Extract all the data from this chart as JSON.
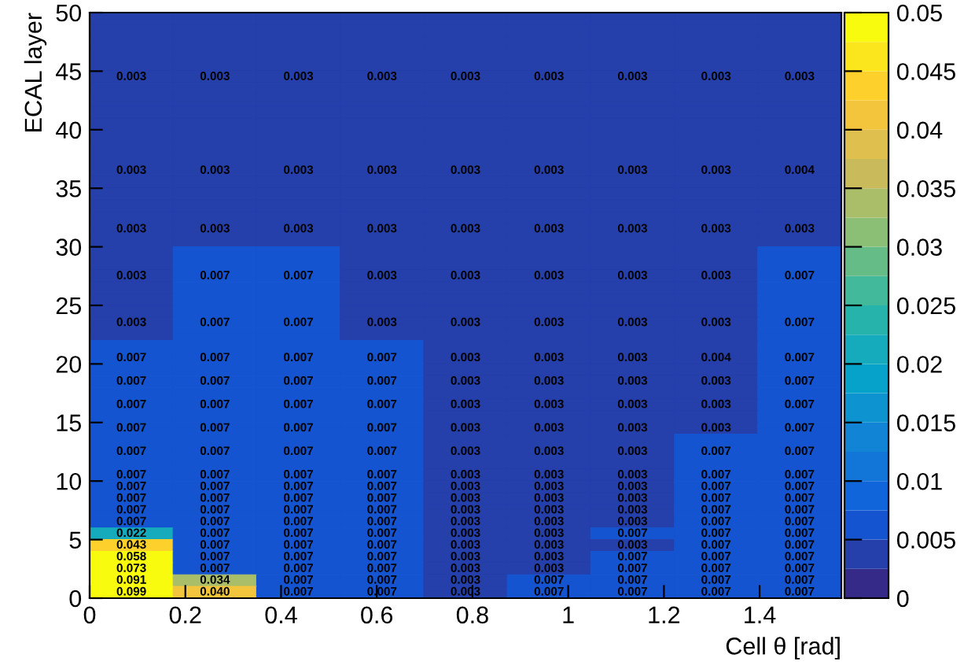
{
  "chart_data": {
    "type": "heatmap",
    "xlabel": "Cell θ [rad]",
    "ylabel": "ECAL layer",
    "x": [
      0.0873,
      0.2618,
      0.4363,
      0.6109,
      0.7854,
      0.9599,
      1.1345,
      1.309,
      1.4835
    ],
    "y": [
      49.5,
      48.5,
      47.5,
      46.5,
      45.5,
      44.5,
      43.5,
      42.5,
      41.5,
      40.5,
      39.5,
      38.5,
      37.5,
      36.5,
      35.5,
      34.5,
      33.5,
      32.5,
      31.5,
      30.5,
      29.5,
      28.5,
      27.5,
      26.5,
      25.5,
      24.5,
      23.5,
      22.5,
      21.5,
      20.5,
      19.5,
      18.5,
      17.5,
      16.5,
      15.5,
      14.5,
      13.5,
      12.5,
      11.5,
      10.5,
      9.5,
      8.5,
      7.5,
      6.5,
      5.5,
      4.5,
      3.5,
      2.5,
      1.5,
      0.5
    ],
    "cells": [
      [
        0.003,
        0.003,
        0.003,
        0.003,
        0.003,
        0.003,
        0.003,
        0.003,
        0.003
      ],
      [
        0.003,
        0.003,
        0.003,
        0.003,
        0.003,
        0.003,
        0.003,
        0.003,
        0.003
      ],
      [
        0.003,
        0.003,
        0.003,
        0.003,
        0.003,
        0.003,
        0.003,
        0.003,
        0.003
      ],
      [
        0.003,
        0.003,
        0.003,
        0.003,
        0.003,
        0.003,
        0.003,
        0.003,
        0.003
      ],
      [
        0.003,
        0.003,
        0.003,
        0.003,
        0.003,
        0.003,
        0.003,
        0.003,
        0.003
      ],
      [
        0.003,
        0.003,
        0.003,
        0.003,
        0.003,
        0.003,
        0.003,
        0.003,
        0.003
      ],
      [
        0.003,
        0.003,
        0.003,
        0.003,
        0.003,
        0.003,
        0.003,
        0.003,
        0.003
      ],
      [
        0.003,
        0.003,
        0.003,
        0.003,
        0.003,
        0.003,
        0.003,
        0.003,
        0.003
      ],
      [
        0.003,
        0.003,
        0.003,
        0.003,
        0.003,
        0.003,
        0.003,
        0.003,
        0.003
      ],
      [
        0.003,
        0.003,
        0.003,
        0.003,
        0.003,
        0.003,
        0.003,
        0.003,
        0.003
      ],
      [
        0.003,
        0.003,
        0.003,
        0.003,
        0.003,
        0.003,
        0.003,
        0.003,
        0.004
      ],
      [
        0.003,
        0.003,
        0.003,
        0.003,
        0.003,
        0.003,
        0.003,
        0.003,
        0.004
      ],
      [
        0.003,
        0.003,
        0.003,
        0.003,
        0.003,
        0.003,
        0.003,
        0.003,
        0.004
      ],
      [
        0.003,
        0.003,
        0.003,
        0.003,
        0.003,
        0.003,
        0.003,
        0.003,
        0.004
      ],
      [
        0.003,
        0.003,
        0.003,
        0.003,
        0.003,
        0.003,
        0.003,
        0.003,
        0.004
      ],
      [
        0.003,
        0.003,
        0.003,
        0.003,
        0.003,
        0.003,
        0.003,
        0.003,
        0.004
      ],
      [
        0.003,
        0.003,
        0.003,
        0.003,
        0.003,
        0.003,
        0.003,
        0.003,
        0.003
      ],
      [
        0.003,
        0.003,
        0.003,
        0.003,
        0.003,
        0.003,
        0.003,
        0.003,
        0.003
      ],
      [
        0.003,
        0.003,
        0.003,
        0.003,
        0.003,
        0.003,
        0.003,
        0.003,
        0.003
      ],
      [
        0.003,
        0.003,
        0.003,
        0.003,
        0.003,
        0.003,
        0.003,
        0.003,
        0.003
      ],
      [
        0.003,
        0.007,
        0.007,
        0.003,
        0.003,
        0.003,
        0.003,
        0.003,
        0.007
      ],
      [
        0.003,
        0.007,
        0.007,
        0.003,
        0.003,
        0.003,
        0.003,
        0.003,
        0.007
      ],
      [
        0.003,
        0.007,
        0.007,
        0.003,
        0.003,
        0.003,
        0.003,
        0.003,
        0.007
      ],
      [
        0.003,
        0.007,
        0.007,
        0.003,
        0.003,
        0.003,
        0.003,
        0.003,
        0.007
      ],
      [
        0.003,
        0.007,
        0.007,
        0.003,
        0.003,
        0.003,
        0.003,
        0.003,
        0.007
      ],
      [
        0.003,
        0.007,
        0.007,
        0.003,
        0.003,
        0.003,
        0.003,
        0.003,
        0.007
      ],
      [
        0.003,
        0.007,
        0.007,
        0.003,
        0.003,
        0.003,
        0.003,
        0.003,
        0.007
      ],
      [
        0.003,
        0.007,
        0.007,
        0.003,
        0.003,
        0.003,
        0.003,
        0.003,
        0.007
      ],
      [
        0.007,
        0.007,
        0.007,
        0.007,
        0.003,
        0.003,
        0.003,
        0.004,
        0.007
      ],
      [
        0.007,
        0.007,
        0.007,
        0.007,
        0.003,
        0.003,
        0.003,
        0.004,
        0.007
      ],
      [
        0.007,
        0.007,
        0.007,
        0.007,
        0.003,
        0.003,
        0.003,
        0.003,
        0.007
      ],
      [
        0.007,
        0.007,
        0.007,
        0.007,
        0.003,
        0.003,
        0.003,
        0.003,
        0.007
      ],
      [
        0.007,
        0.007,
        0.007,
        0.007,
        0.003,
        0.003,
        0.003,
        0.003,
        0.007
      ],
      [
        0.007,
        0.007,
        0.007,
        0.007,
        0.003,
        0.003,
        0.003,
        0.003,
        0.007
      ],
      [
        0.007,
        0.007,
        0.007,
        0.007,
        0.003,
        0.003,
        0.003,
        0.003,
        0.007
      ],
      [
        0.007,
        0.007,
        0.007,
        0.007,
        0.003,
        0.003,
        0.003,
        0.003,
        0.007
      ],
      [
        0.007,
        0.007,
        0.007,
        0.007,
        0.003,
        0.003,
        0.003,
        0.007,
        0.007
      ],
      [
        0.007,
        0.007,
        0.007,
        0.007,
        0.003,
        0.003,
        0.003,
        0.007,
        0.007
      ],
      [
        0.007,
        0.007,
        0.007,
        0.007,
        0.003,
        0.003,
        0.003,
        0.007,
        0.007
      ],
      [
        0.007,
        0.007,
        0.007,
        0.007,
        0.003,
        0.003,
        0.003,
        0.007,
        0.007
      ],
      [
        0.007,
        0.007,
        0.007,
        0.007,
        0.003,
        0.003,
        0.003,
        0.007,
        0.007
      ],
      [
        0.007,
        0.007,
        0.007,
        0.007,
        0.003,
        0.003,
        0.003,
        0.007,
        0.007
      ],
      [
        0.007,
        0.007,
        0.007,
        0.007,
        0.003,
        0.003,
        0.003,
        0.007,
        0.007
      ],
      [
        0.007,
        0.007,
        0.007,
        0.007,
        0.003,
        0.003,
        0.003,
        0.007,
        0.007
      ],
      [
        0.022,
        0.007,
        0.007,
        0.007,
        0.003,
        0.003,
        0.007,
        0.007,
        0.007
      ],
      [
        0.043,
        0.007,
        0.007,
        0.007,
        0.003,
        0.003,
        0.003,
        0.007,
        0.007
      ],
      [
        0.058,
        0.007,
        0.007,
        0.007,
        0.003,
        0.003,
        0.007,
        0.007,
        0.007
      ],
      [
        0.073,
        0.007,
        0.007,
        0.007,
        0.003,
        0.003,
        0.007,
        0.007,
        0.007
      ],
      [
        0.091,
        0.034,
        0.007,
        0.007,
        0.003,
        0.007,
        0.007,
        0.007,
        0.007
      ],
      [
        0.099,
        0.04,
        0.007,
        0.007,
        0.003,
        0.007,
        0.007,
        0.007,
        0.007
      ]
    ],
    "cell_labels": [
      [
        null,
        null,
        null,
        null,
        null,
        null,
        null,
        null,
        null
      ],
      [
        null,
        null,
        null,
        null,
        null,
        null,
        null,
        null,
        null
      ],
      [
        null,
        null,
        null,
        null,
        null,
        null,
        null,
        null,
        null
      ],
      [
        null,
        null,
        null,
        null,
        null,
        null,
        null,
        null,
        null
      ],
      [
        null,
        null,
        null,
        null,
        null,
        null,
        null,
        null,
        null
      ],
      [
        "0.003",
        "0.003",
        "0.003",
        "0.003",
        "0.003",
        "0.003",
        "0.003",
        "0.003",
        "0.003"
      ],
      [
        null,
        null,
        null,
        null,
        null,
        null,
        null,
        null,
        null
      ],
      [
        null,
        null,
        null,
        null,
        null,
        null,
        null,
        null,
        null
      ],
      [
        null,
        null,
        null,
        null,
        null,
        null,
        null,
        null,
        null
      ],
      [
        null,
        null,
        null,
        null,
        null,
        null,
        null,
        null,
        null
      ],
      [
        null,
        null,
        null,
        null,
        null,
        null,
        null,
        null,
        null
      ],
      [
        null,
        null,
        null,
        null,
        null,
        null,
        null,
        null,
        null
      ],
      [
        null,
        null,
        null,
        null,
        null,
        null,
        null,
        null,
        null
      ],
      [
        "0.003",
        "0.003",
        "0.003",
        "0.003",
        "0.003",
        "0.003",
        "0.003",
        "0.003",
        "0.004"
      ],
      [
        null,
        null,
        null,
        null,
        null,
        null,
        null,
        null,
        null
      ],
      [
        null,
        null,
        null,
        null,
        null,
        null,
        null,
        null,
        null
      ],
      [
        null,
        null,
        null,
        null,
        null,
        null,
        null,
        null,
        null
      ],
      [
        null,
        null,
        null,
        null,
        null,
        null,
        null,
        null,
        null
      ],
      [
        "0.003",
        "0.003",
        "0.003",
        "0.003",
        "0.003",
        "0.003",
        "0.003",
        "0.003",
        "0.003"
      ],
      [
        null,
        null,
        null,
        null,
        null,
        null,
        null,
        null,
        null
      ],
      [
        null,
        null,
        null,
        null,
        null,
        null,
        null,
        null,
        null
      ],
      [
        null,
        null,
        null,
        null,
        null,
        null,
        null,
        null,
        null
      ],
      [
        "0.003",
        "0.007",
        "0.007",
        "0.003",
        "0.003",
        "0.003",
        "0.003",
        "0.003",
        "0.007"
      ],
      [
        null,
        null,
        null,
        null,
        null,
        null,
        null,
        null,
        null
      ],
      [
        null,
        null,
        null,
        null,
        null,
        null,
        null,
        null,
        null
      ],
      [
        null,
        null,
        null,
        null,
        null,
        null,
        null,
        null,
        null
      ],
      [
        "0.003",
        "0.007",
        "0.007",
        "0.003",
        "0.003",
        "0.003",
        "0.003",
        "0.003",
        "0.007"
      ],
      [
        null,
        null,
        null,
        null,
        null,
        null,
        null,
        null,
        null
      ],
      [
        null,
        null,
        null,
        null,
        null,
        null,
        null,
        null,
        null
      ],
      [
        "0.007",
        "0.007",
        "0.007",
        "0.007",
        "0.003",
        "0.003",
        "0.003",
        "0.004",
        "0.007"
      ],
      [
        null,
        null,
        null,
        null,
        null,
        null,
        null,
        null,
        null
      ],
      [
        "0.007",
        "0.007",
        "0.007",
        "0.007",
        "0.003",
        "0.003",
        "0.003",
        "0.003",
        "0.007"
      ],
      [
        null,
        null,
        null,
        null,
        null,
        null,
        null,
        null,
        null
      ],
      [
        "0.007",
        "0.007",
        "0.007",
        "0.007",
        "0.003",
        "0.003",
        "0.003",
        "0.003",
        "0.007"
      ],
      [
        null,
        null,
        null,
        null,
        null,
        null,
        null,
        null,
        null
      ],
      [
        "0.007",
        "0.007",
        "0.007",
        "0.007",
        "0.003",
        "0.003",
        "0.003",
        "0.003",
        "0.007"
      ],
      [
        null,
        null,
        null,
        null,
        null,
        null,
        null,
        null,
        null
      ],
      [
        "0.007",
        "0.007",
        "0.007",
        "0.007",
        "0.003",
        "0.003",
        "0.003",
        "0.007",
        "0.007"
      ],
      [
        null,
        null,
        null,
        null,
        null,
        null,
        null,
        null,
        null
      ],
      [
        "0.007",
        "0.007",
        "0.007",
        "0.007",
        "0.003",
        "0.003",
        "0.003",
        "0.007",
        "0.007"
      ],
      [
        "0.007",
        "0.007",
        "0.007",
        "0.007",
        "0.003",
        "0.003",
        "0.003",
        "0.007",
        "0.007"
      ],
      [
        "0.007",
        "0.007",
        "0.007",
        "0.007",
        "0.003",
        "0.003",
        "0.003",
        "0.007",
        "0.007"
      ],
      [
        "0.007",
        "0.007",
        "0.007",
        "0.007",
        "0.003",
        "0.003",
        "0.003",
        "0.007",
        "0.007"
      ],
      [
        "0.007",
        "0.007",
        "0.007",
        "0.007",
        "0.003",
        "0.003",
        "0.003",
        "0.007",
        "0.007"
      ],
      [
        "0.022",
        "0.007",
        "0.007",
        "0.007",
        "0.003",
        "0.003",
        "0.007",
        "0.007",
        "0.007"
      ],
      [
        "0.043",
        "0.007",
        "0.007",
        "0.007",
        "0.003",
        "0.003",
        "0.003",
        "0.007",
        "0.007"
      ],
      [
        "0.058",
        "0.007",
        "0.007",
        "0.007",
        "0.003",
        "0.003",
        "0.007",
        "0.007",
        "0.007"
      ],
      [
        "0.073",
        "0.007",
        "0.007",
        "0.007",
        "0.003",
        "0.003",
        "0.007",
        "0.007",
        "0.007"
      ],
      [
        "0.091",
        "0.034",
        "0.007",
        "0.007",
        "0.003",
        "0.007",
        "0.007",
        "0.007",
        "0.007"
      ],
      [
        "0.099",
        "0.040",
        "0.007",
        "0.007",
        "0.003",
        "0.007",
        "0.007",
        "0.007",
        "0.007"
      ]
    ],
    "xlim": [
      0,
      1.5708
    ],
    "ylim": [
      0,
      50
    ],
    "xticks": [
      0,
      0.2,
      0.4,
      0.6,
      0.8,
      1,
      1.2,
      1.4
    ],
    "yticks": [
      0,
      5,
      10,
      15,
      20,
      25,
      30,
      35,
      40,
      45,
      50
    ],
    "clim": [
      0,
      0.05
    ],
    "cticks": [
      0,
      0.005,
      0.01,
      0.015,
      0.02,
      0.025,
      0.03,
      0.035,
      0.04,
      0.045,
      0.05
    ]
  }
}
